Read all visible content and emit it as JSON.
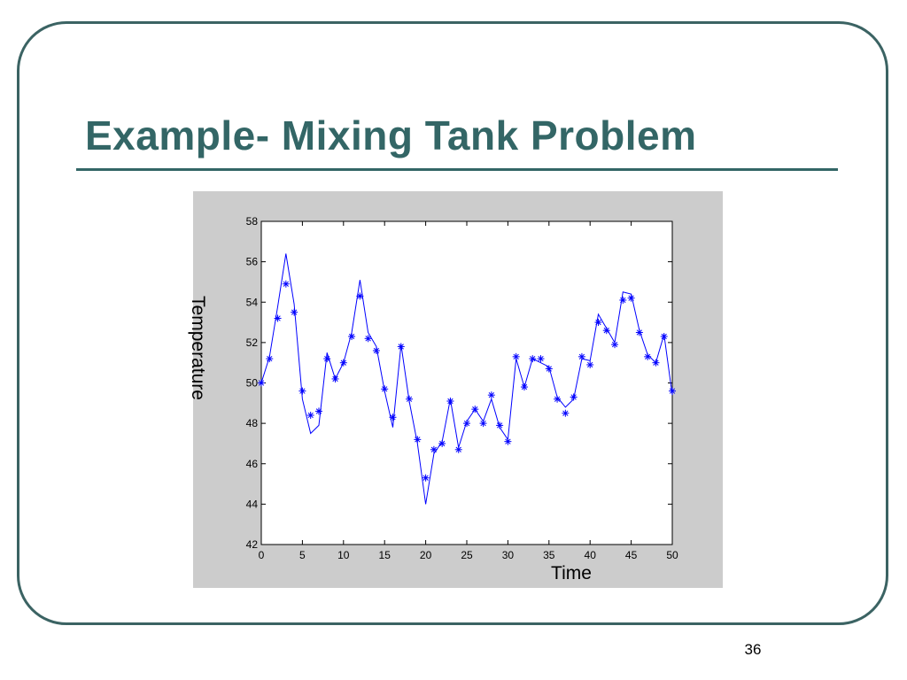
{
  "slide": {
    "title": "Example- Mixing Tank Problem",
    "page_number": "36"
  },
  "colors": {
    "title": "#336666",
    "frame": "#3b6363",
    "panel": "#cccccc",
    "series": "#0000ff"
  },
  "chart_data": {
    "type": "line",
    "title": "",
    "xlabel": "Time",
    "ylabel": "Temperature",
    "xlim": [
      0,
      50
    ],
    "ylim": [
      42,
      58
    ],
    "xticks": [
      0,
      5,
      10,
      15,
      20,
      25,
      30,
      35,
      40,
      45,
      50
    ],
    "yticks": [
      42,
      44,
      46,
      48,
      50,
      52,
      54,
      56,
      58
    ],
    "grid": false,
    "series": [
      {
        "style": "line",
        "color": "#0000ff",
        "x": [
          0,
          1,
          2,
          3,
          4,
          5,
          6,
          7,
          8,
          9,
          10,
          11,
          12,
          13,
          14,
          15,
          16,
          17,
          18,
          19,
          20,
          21,
          22,
          23,
          24,
          25,
          26,
          27,
          28,
          29,
          30,
          31,
          32,
          33,
          34,
          35,
          36,
          37,
          38,
          39,
          40,
          41,
          42,
          43,
          44,
          45,
          46,
          47,
          48,
          49,
          50
        ],
        "y": [
          50.0,
          51.3,
          53.8,
          56.4,
          53.9,
          49.2,
          47.5,
          47.9,
          51.5,
          50.2,
          51.0,
          52.5,
          55.1,
          52.5,
          51.8,
          49.6,
          47.8,
          51.9,
          49.1,
          47.0,
          44.0,
          46.5,
          47.1,
          49.2,
          46.8,
          48.1,
          48.7,
          48.1,
          49.2,
          47.8,
          47.2,
          51.2,
          49.8,
          51.2,
          51.0,
          50.8,
          49.3,
          48.8,
          49.2,
          51.2,
          51.1,
          53.4,
          52.7,
          52.0,
          54.5,
          54.4,
          52.6,
          51.4,
          51.0,
          52.4,
          49.4
        ]
      },
      {
        "style": "markers",
        "marker": "*",
        "color": "#0000ff",
        "x": [
          0,
          1,
          2,
          3,
          4,
          5,
          6,
          7,
          8,
          9,
          10,
          11,
          12,
          13,
          14,
          15,
          16,
          17,
          18,
          19,
          20,
          21,
          22,
          23,
          24,
          25,
          26,
          27,
          28,
          29,
          30,
          31,
          32,
          33,
          34,
          35,
          36,
          37,
          38,
          39,
          40,
          41,
          42,
          43,
          44,
          45,
          46,
          47,
          48,
          49,
          50
        ],
        "y": [
          50.0,
          51.2,
          53.2,
          54.9,
          53.5,
          49.6,
          48.4,
          48.6,
          51.2,
          50.2,
          51.0,
          52.3,
          54.3,
          52.2,
          51.6,
          49.7,
          48.3,
          51.8,
          49.2,
          47.2,
          45.3,
          46.7,
          47.0,
          49.1,
          46.7,
          48.0,
          48.7,
          48.0,
          49.4,
          47.9,
          47.1,
          51.3,
          49.8,
          51.2,
          51.2,
          50.7,
          49.2,
          48.5,
          49.3,
          51.3,
          50.9,
          53.0,
          52.6,
          51.9,
          54.1,
          54.2,
          52.5,
          51.3,
          51.0,
          52.3,
          49.6
        ]
      }
    ]
  }
}
